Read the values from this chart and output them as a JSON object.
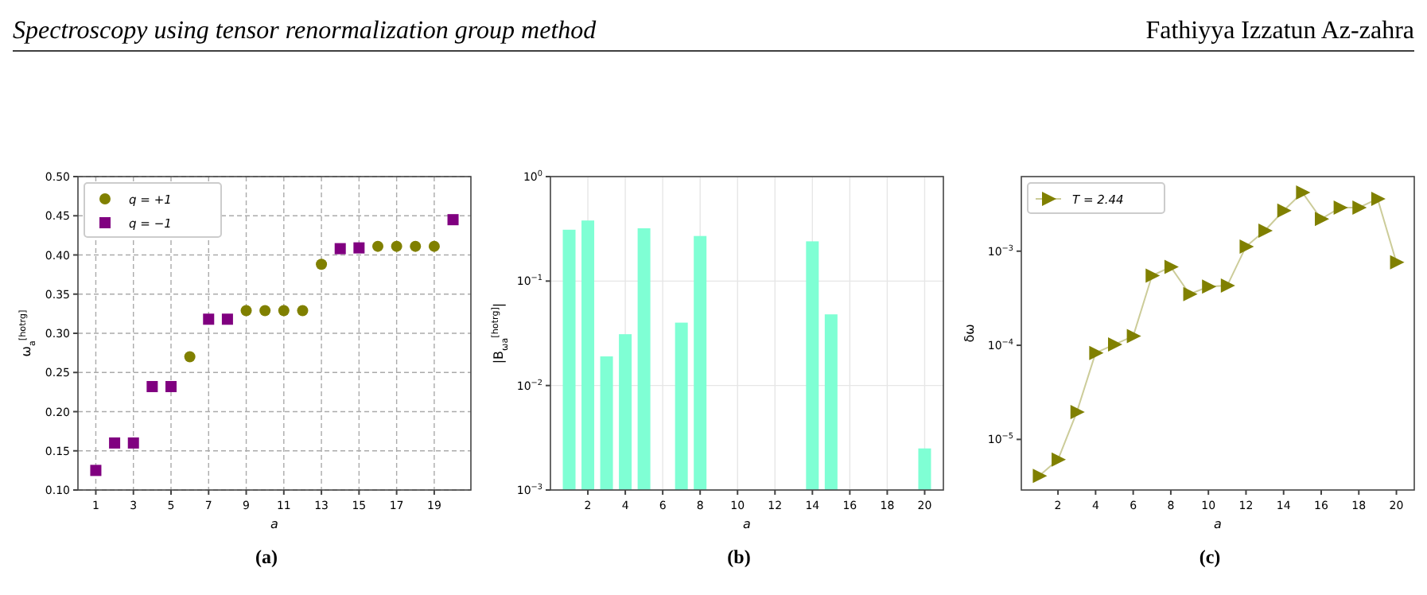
{
  "chart_data": [
    {
      "type": "scatter",
      "xlabel": "a",
      "ylabel": "ω$_{a}$$^{[hotrg]}$",
      "annotations": [
        "Spectroscopy using tensor renormalization group method",
        "Fathiyya Izzatun Az-zahra",
        "(a)"
      ],
      "xlim": [
        0.05,
        20.95
      ],
      "ylim": [
        0.1,
        0.5
      ],
      "xticks": [
        1,
        3,
        5,
        7,
        9,
        11,
        13,
        15,
        17,
        19
      ],
      "yticks": [
        {
          "value": 0.1,
          "label": "0.10"
        },
        {
          "value": 0.15,
          "label": "0.15"
        },
        {
          "value": 0.2,
          "label": "0.20"
        },
        {
          "value": 0.25,
          "label": "0.25"
        },
        {
          "value": 0.3,
          "label": "0.30"
        },
        {
          "value": 0.35,
          "label": "0.35"
        },
        {
          "value": 0.4,
          "label": "0.40"
        },
        {
          "value": 0.45,
          "label": "0.45"
        },
        {
          "value": 0.5,
          "label": "0.50"
        }
      ],
      "grid": true,
      "legend": "top left",
      "series": [
        {
          "name": "q = +1",
          "color": "#808000",
          "marker": "circle",
          "x": [
            6,
            9,
            10,
            11,
            12,
            13,
            16,
            17,
            18,
            19
          ],
          "values": [
            0.27,
            0.329,
            0.329,
            0.329,
            0.329,
            0.388,
            0.411,
            0.411,
            0.411,
            0.411
          ]
        },
        {
          "name": "q = −1",
          "color": "#800080",
          "marker": "square",
          "x": [
            1,
            2,
            3,
            4,
            5,
            7,
            8,
            14,
            15,
            20
          ],
          "values": [
            0.125,
            0.16,
            0.16,
            0.232,
            0.232,
            0.318,
            0.318,
            0.408,
            0.409,
            0.445
          ]
        }
      ]
    },
    {
      "type": "bar",
      "xlabel": "a",
      "ylabel": "|B$_{ωa}$$^{[hotrg]}$|",
      "annotations": [
        "(b)"
      ],
      "log": true,
      "xlim": [
        0,
        21
      ],
      "ylim": [
        0.001,
        1
      ],
      "xticks": [
        2,
        4,
        6,
        8,
        10,
        12,
        14,
        16,
        18,
        20
      ],
      "yticks": [
        {
          "value": 0.001,
          "label": "10$^{−3}$"
        },
        {
          "value": 0.01,
          "label": "10$^{−2}$"
        },
        {
          "value": 0.1,
          "label": "10$^{−1}$"
        },
        {
          "value": 1,
          "label": "10$^{0}$"
        }
      ],
      "grid": true,
      "x": [
        1,
        2,
        3,
        4,
        5,
        7,
        8,
        14,
        15,
        20
      ],
      "values": [
        0.31,
        0.38,
        0.019,
        0.031,
        0.32,
        0.04,
        0.27,
        0.24,
        0.048,
        0.0025
      ],
      "color": "#7fffd4"
    },
    {
      "type": "line",
      "xlabel": "a",
      "ylabel": "δω",
      "annotations": [
        "(c)"
      ],
      "log": true,
      "xlim": [
        0.05,
        20.95
      ],
      "ylim": [
        2.9e-06,
        0.0062
      ],
      "xticks": [
        2,
        4,
        6,
        8,
        10,
        12,
        14,
        16,
        18,
        20
      ],
      "yticks": [
        {
          "value": 1e-05,
          "label": "10$^{−5}$"
        },
        {
          "value": 0.0001,
          "label": "10$^{−4}$"
        },
        {
          "value": 0.001,
          "label": "10$^{−3}$"
        }
      ],
      "legend": "top left",
      "marker": "triangle",
      "series": [
        {
          "name": "T = 2.44",
          "color": "#808000",
          "x": [
            1,
            2,
            3,
            4,
            5,
            6,
            7,
            8,
            9,
            10,
            11,
            12,
            13,
            14,
            15,
            16,
            17,
            18,
            19,
            20
          ],
          "values": [
            4.1e-06,
            6.1e-06,
            1.95e-05,
            8.3e-05,
            0.000102,
            0.000125,
            0.00055,
            0.00068,
            0.00035,
            0.00042,
            0.00043,
            0.00112,
            0.00165,
            0.0027,
            0.0042,
            0.0022,
            0.0029,
            0.0029,
            0.0036,
            0.00076
          ]
        }
      ]
    }
  ]
}
